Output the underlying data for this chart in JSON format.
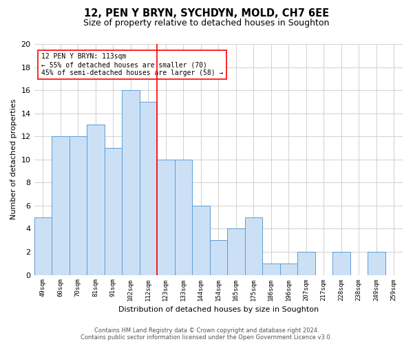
{
  "title1": "12, PEN Y BRYN, SYCHDYN, MOLD, CH7 6EE",
  "title2": "Size of property relative to detached houses in Soughton",
  "xlabel": "Distribution of detached houses by size in Soughton",
  "ylabel": "Number of detached properties",
  "categories": [
    "49sqm",
    "60sqm",
    "70sqm",
    "81sqm",
    "91sqm",
    "102sqm",
    "112sqm",
    "123sqm",
    "133sqm",
    "144sqm",
    "154sqm",
    "165sqm",
    "175sqm",
    "186sqm",
    "196sqm",
    "207sqm",
    "217sqm",
    "228sqm",
    "238sqm",
    "249sqm",
    "259sqm"
  ],
  "values": [
    5,
    12,
    12,
    13,
    11,
    16,
    15,
    10,
    10,
    6,
    3,
    4,
    5,
    1,
    1,
    2,
    0,
    2,
    0,
    2,
    0
  ],
  "bar_color": "#cce0f5",
  "bar_edge_color": "#5b9bd5",
  "grid_color": "#d0d0d0",
  "vline_color": "red",
  "annotation_lines": [
    "12 PEN Y BRYN: 113sqm",
    "← 55% of detached houses are smaller (70)",
    "45% of semi-detached houses are larger (58) →"
  ],
  "ylim": [
    0,
    20
  ],
  "yticks": [
    0,
    2,
    4,
    6,
    8,
    10,
    12,
    14,
    16,
    18,
    20
  ],
  "footer_line1": "Contains HM Land Registry data © Crown copyright and database right 2024.",
  "footer_line2": "Contains public sector information licensed under the Open Government Licence v3.0."
}
